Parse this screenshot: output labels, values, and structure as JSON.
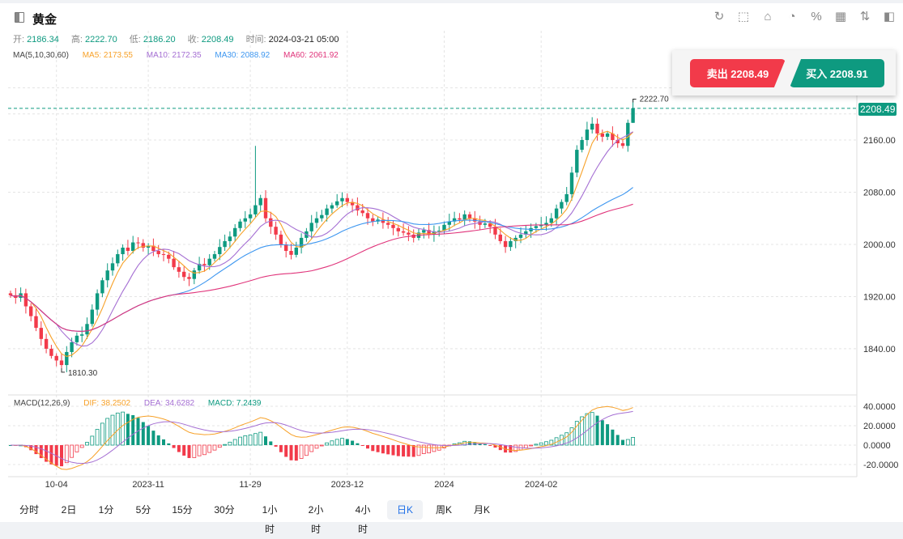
{
  "header": {
    "title": "黄金",
    "tools": [
      "refresh-icon",
      "draw-icon",
      "indicator-icon",
      "pie-chart-icon",
      "percent-icon",
      "layout-icon",
      "sort-icon",
      "panel-icon"
    ]
  },
  "ohlc": {
    "open_label": "开:",
    "open": "2186.34",
    "high_label": "高:",
    "high": "2222.70",
    "low_label": "低:",
    "low": "2186.20",
    "close_label": "收:",
    "close": "2208.49",
    "time_label": "时间:",
    "time": "2024-03-21 05:00"
  },
  "ma_legend": {
    "title": "MA(5,10,30,60)",
    "ma5": "MA5: 2173.55",
    "ma10": "MA10: 2172.35",
    "ma30": "MA30: 2088.92",
    "ma60": "MA60: 2061.92"
  },
  "trade": {
    "sell": "卖出 2208.49",
    "buy": "买入 2208.91"
  },
  "macd_legend": {
    "title": "MACD(12,26,9)",
    "dif": "DIF: 38.2502",
    "dea": "DEA: 34.6282",
    "macd": "MACD: 7.2439"
  },
  "colors": {
    "up": "#0e9a80",
    "down": "#f23a4a",
    "ma5": "#f7a128",
    "ma10": "#a56fd3",
    "ma30": "#3e97f0",
    "ma60": "#e0337a"
  },
  "tabs": [
    "分时",
    "2日",
    "1分",
    "5分",
    "15分",
    "30分",
    "1小时",
    "2小时",
    "4小时",
    "日K",
    "周K",
    "月K"
  ],
  "selected_tab": "日K",
  "chart_data": {
    "type": "candlestick",
    "price_axis": {
      "ticks": [
        "2160.00",
        "2080.00",
        "2000.00",
        "1920.00",
        "1840.00"
      ],
      "range": [
        1780,
        2240
      ]
    },
    "macd_axis": {
      "ticks": [
        "40.0000",
        "20.0000",
        "0.0000",
        "-20.0000"
      ],
      "range": [
        -35,
        45
      ]
    },
    "x_ticks": [
      {
        "index": 9,
        "label": "10-04"
      },
      {
        "index": 27,
        "label": "2023-11"
      },
      {
        "index": 47,
        "label": "11-29"
      },
      {
        "index": 66,
        "label": "2023-12"
      },
      {
        "index": 85,
        "label": "2024"
      },
      {
        "index": 104,
        "label": "2024-02"
      }
    ],
    "last_price": "2208.49",
    "high_marker": "2222.70",
    "low_marker": "1810.30",
    "closes": [
      1922,
      1918,
      1925,
      1905,
      1890,
      1872,
      1855,
      1840,
      1829,
      1822,
      1815,
      1835,
      1850,
      1860,
      1862,
      1878,
      1900,
      1925,
      1945,
      1960,
      1971,
      1985,
      1995,
      1990,
      2003,
      2002,
      1995,
      1998,
      1990,
      1985,
      1984,
      1978,
      1965,
      1958,
      1950,
      1947,
      1960,
      1970,
      1968,
      1978,
      1985,
      1996,
      2005,
      2012,
      2025,
      2035,
      2040,
      2046,
      2060,
      2071,
      2040,
      2027,
      2015,
      2000,
      1990,
      1984,
      1995,
      2010,
      2020,
      2033,
      2040,
      2045,
      2055,
      2060,
      2066,
      2071,
      2065,
      2060,
      2052,
      2048,
      2040,
      2035,
      2038,
      2033,
      2030,
      2025,
      2020,
      2018,
      2015,
      2010,
      2018,
      2022,
      2015,
      2020,
      2021,
      2030,
      2035,
      2040,
      2038,
      2046,
      2040,
      2035,
      2030,
      2032,
      2027,
      2015,
      2005,
      1996,
      2005,
      2010,
      2015,
      2020,
      2025,
      2028,
      2030,
      2033,
      2040,
      2055,
      2065,
      2077,
      2110,
      2145,
      2160,
      2176,
      2185,
      2170,
      2165,
      2170,
      2160,
      2155,
      2151,
      2186.34,
      2208.49
    ],
    "last_candle": {
      "open": 2186.34,
      "high": 2222.7,
      "low": 2186.2,
      "close": 2208.49
    }
  }
}
